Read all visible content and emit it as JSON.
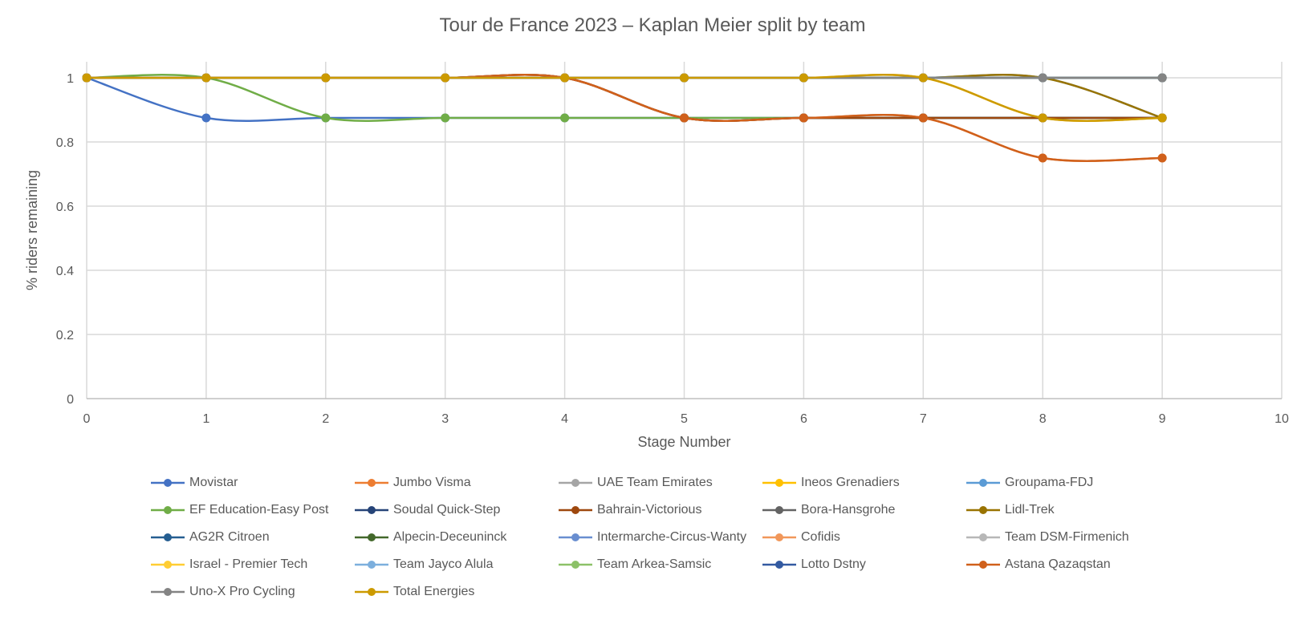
{
  "chart_data": {
    "type": "line",
    "title": "Tour de France 2023 – Kaplan Meier split by team",
    "xlabel": "Stage Number",
    "ylabel": "% riders remaining",
    "xlim": [
      0,
      10
    ],
    "ylim": [
      0,
      1
    ],
    "x_ticks": [
      "0",
      "1",
      "2",
      "3",
      "4",
      "5",
      "6",
      "7",
      "8",
      "9",
      "10"
    ],
    "y_ticks": [
      "0",
      "0.2",
      "0.4",
      "0.6",
      "0.8",
      "1"
    ],
    "grid": true,
    "smooth": true,
    "legend_position": "bottom",
    "x": [
      0,
      1,
      2,
      3,
      4,
      5,
      6,
      7,
      8,
      9
    ],
    "series": [
      {
        "name": "Movistar",
        "color": "#4472C4",
        "values": [
          1,
          0.875,
          0.875,
          0.875,
          0.875,
          0.875,
          0.875,
          0.875,
          0.875,
          0.875
        ]
      },
      {
        "name": "Jumbo Visma",
        "color": "#ED7D31",
        "values": [
          1,
          1,
          1,
          1,
          1,
          0.875,
          0.875,
          0.875,
          0.75,
          0.75
        ]
      },
      {
        "name": "UAE Team Emirates",
        "color": "#A5A5A5",
        "values": [
          1,
          1,
          1,
          1,
          1,
          1,
          1,
          1,
          1,
          1
        ]
      },
      {
        "name": "Ineos Grenadiers",
        "color": "#FFC000",
        "values": [
          1,
          1,
          1,
          1,
          1,
          1,
          1,
          1,
          0.875,
          0.875
        ]
      },
      {
        "name": "Groupama-FDJ",
        "color": "#5B9BD5",
        "values": [
          1,
          1,
          1,
          1,
          1,
          1,
          1,
          1,
          1,
          0.875
        ]
      },
      {
        "name": "EF Education-Easy Post",
        "color": "#70AD47",
        "values": [
          1,
          1,
          0.875,
          0.875,
          0.875,
          0.875,
          0.875,
          0.875,
          0.875,
          0.875
        ]
      },
      {
        "name": "Soudal Quick-Step",
        "color": "#264478",
        "values": [
          1,
          1,
          1,
          1,
          1,
          0.875,
          0.875,
          0.875,
          0.875,
          0.875
        ]
      },
      {
        "name": "Bahrain-Victorious",
        "color": "#9E480E",
        "values": [
          1,
          1,
          1,
          1,
          1,
          0.875,
          0.875,
          0.875,
          0.875,
          0.875
        ]
      },
      {
        "name": "Bora-Hansgrohe",
        "color": "#636363",
        "values": [
          1,
          1,
          1,
          1,
          1,
          1,
          1,
          1,
          1,
          1
        ]
      },
      {
        "name": "Lidl-Trek",
        "color": "#997300",
        "values": [
          1,
          1,
          1,
          1,
          1,
          1,
          1,
          1,
          1,
          0.875
        ]
      },
      {
        "name": "AG2R Citroen",
        "color": "#255E91",
        "values": [
          1,
          1,
          1,
          1,
          1,
          1,
          1,
          1,
          1,
          1
        ]
      },
      {
        "name": "Alpecin-Deceuninck",
        "color": "#43682B",
        "values": [
          1,
          1,
          1,
          1,
          1,
          1,
          1,
          1,
          1,
          1
        ]
      },
      {
        "name": "Intermarche-Circus-Wanty",
        "color": "#698ED0",
        "values": [
          1,
          1,
          1,
          1,
          1,
          1,
          1,
          1,
          1,
          1
        ]
      },
      {
        "name": "Cofidis",
        "color": "#F1975A",
        "values": [
          1,
          1,
          1,
          1,
          1,
          1,
          1,
          1,
          1,
          1
        ]
      },
      {
        "name": "Team DSM-Firmenich",
        "color": "#B7B7B7",
        "values": [
          1,
          1,
          1,
          1,
          1,
          1,
          1,
          1,
          1,
          1
        ]
      },
      {
        "name": "Israel - Premier Tech",
        "color": "#FFCD33",
        "values": [
          1,
          1,
          1,
          1,
          1,
          1,
          1,
          1,
          1,
          1
        ]
      },
      {
        "name": "Team Jayco Alula",
        "color": "#7CAFDD",
        "values": [
          1,
          1,
          1,
          1,
          1,
          1,
          1,
          1,
          1,
          1
        ]
      },
      {
        "name": "Team Arkea-Samsic",
        "color": "#8CC168",
        "values": [
          1,
          1,
          1,
          1,
          1,
          1,
          1,
          1,
          1,
          1
        ]
      },
      {
        "name": "Lotto Dstny",
        "color": "#335AA1",
        "values": [
          1,
          1,
          1,
          1,
          1,
          1,
          1,
          1,
          1,
          1
        ]
      },
      {
        "name": "Astana Qazaqstan",
        "color": "#D0601B",
        "values": [
          1,
          1,
          1,
          1,
          1,
          0.875,
          0.875,
          0.875,
          0.75,
          0.75
        ]
      },
      {
        "name": "Uno-X Pro Cycling",
        "color": "#848484",
        "values": [
          1,
          1,
          1,
          1,
          1,
          1,
          1,
          1,
          1,
          1
        ]
      },
      {
        "name": "Total Energies",
        "color": "#CC9A00",
        "values": [
          1,
          1,
          1,
          1,
          1,
          1,
          1,
          1,
          0.875,
          0.875
        ]
      }
    ]
  }
}
